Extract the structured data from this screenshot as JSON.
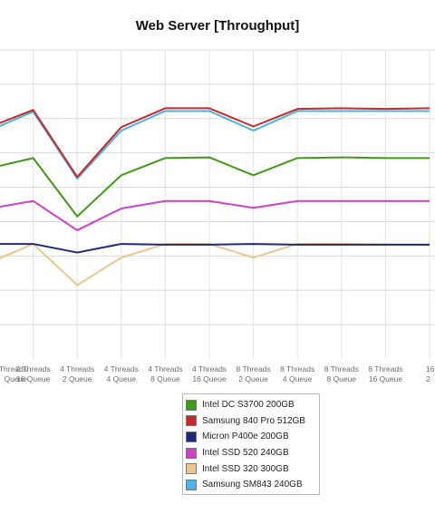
{
  "chart_data": {
    "type": "line",
    "title": "Web Server [Throughput]",
    "xlabel": "",
    "ylabel": "",
    "categories": [
      [
        "Threads",
        "Queue"
      ],
      [
        "2 Threads",
        "16 Queue"
      ],
      [
        "4 Threads",
        "2 Queue"
      ],
      [
        "4 Threads",
        "4 Queue"
      ],
      [
        "4 Threads",
        "8 Queue"
      ],
      [
        "4 Threads",
        "16 Queue"
      ],
      [
        "8 Threads",
        "2 Queue"
      ],
      [
        "8 Threads",
        "4 Queue"
      ],
      [
        "8 Threads",
        "8 Queue"
      ],
      [
        "8 Threads",
        "16 Queue"
      ],
      [
        "16",
        "2"
      ]
    ],
    "ylim": [
      0,
      9
    ],
    "grid": true,
    "legend_position": "bottom",
    "series": [
      {
        "name": "Intel DC S3700 200GB",
        "color": "#3f9a17",
        "values": [
          5.55,
          5.85,
          4.15,
          5.35,
          5.85,
          5.87,
          5.35,
          5.85,
          5.87,
          5.85,
          5.85
        ]
      },
      {
        "name": "Samsung 840 Pro 512GB",
        "color": "#c52a2a",
        "values": [
          6.75,
          7.25,
          5.3,
          6.75,
          7.3,
          7.3,
          6.77,
          7.28,
          7.3,
          7.28,
          7.3
        ]
      },
      {
        "name": "Micron P400e 200GB",
        "color": "#1b2a7e",
        "values": [
          3.35,
          3.35,
          3.1,
          3.35,
          3.33,
          3.33,
          3.35,
          3.33,
          3.33,
          3.33,
          3.33
        ]
      },
      {
        "name": "Intel SSD 520 240GB",
        "color": "#d03fcc",
        "values": [
          4.38,
          4.6,
          3.75,
          4.38,
          4.6,
          4.6,
          4.4,
          4.6,
          4.6,
          4.6,
          4.6
        ]
      },
      {
        "name": "Intel SSD 320 300GB",
        "color": "#eec589",
        "values": [
          2.8,
          3.35,
          2.15,
          2.95,
          3.35,
          3.35,
          2.95,
          3.35,
          3.35,
          3.33,
          3.33
        ]
      },
      {
        "name": "Samsung SM843 240GB",
        "color": "#4cb3e8",
        "values": [
          6.65,
          7.2,
          5.25,
          6.65,
          7.22,
          7.22,
          6.65,
          7.22,
          7.22,
          7.22,
          7.22
        ]
      }
    ]
  }
}
